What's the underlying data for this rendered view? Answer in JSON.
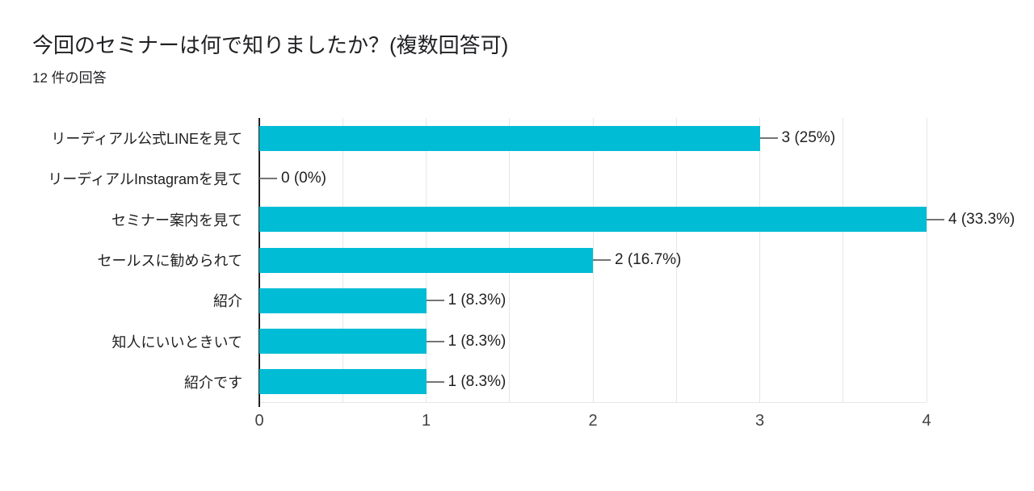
{
  "header": {
    "title": "今回のセミナーは何で知りましたか？(複数回答可)",
    "response_count": "12 件の回答"
  },
  "chart_data": {
    "type": "bar",
    "orientation": "horizontal",
    "title": "今回のセミナーは何で知りましたか？(複数回答可)",
    "subtitle": "12 件の回答",
    "categories": [
      "リーディアル公式LINEを見て",
      "リーディアルInstagramを見て",
      "セミナー案内を見て",
      "セールスに勧められて",
      "紹介",
      "知人にいいときいて",
      "紹介です"
    ],
    "values": [
      3,
      0,
      4,
      2,
      1,
      1,
      1
    ],
    "value_labels": [
      "3 (25%)",
      "0 (0%)",
      "4 (33.3%)",
      "2 (16.7%)",
      "1 (8.3%)",
      "1 (8.3%)",
      "1 (8.3%)"
    ],
    "x_ticks": [
      "0",
      "1",
      "2",
      "3",
      "4"
    ],
    "xlim": [
      0,
      4
    ],
    "grid": true,
    "minor_grid_step": 0.5,
    "legend_position": "none",
    "colors": {
      "bar": "#00BCD4",
      "axis": "#212121",
      "grid": "#e6e6e6",
      "leader": "#757575",
      "text": "#212121",
      "tick_text": "#424242"
    }
  }
}
